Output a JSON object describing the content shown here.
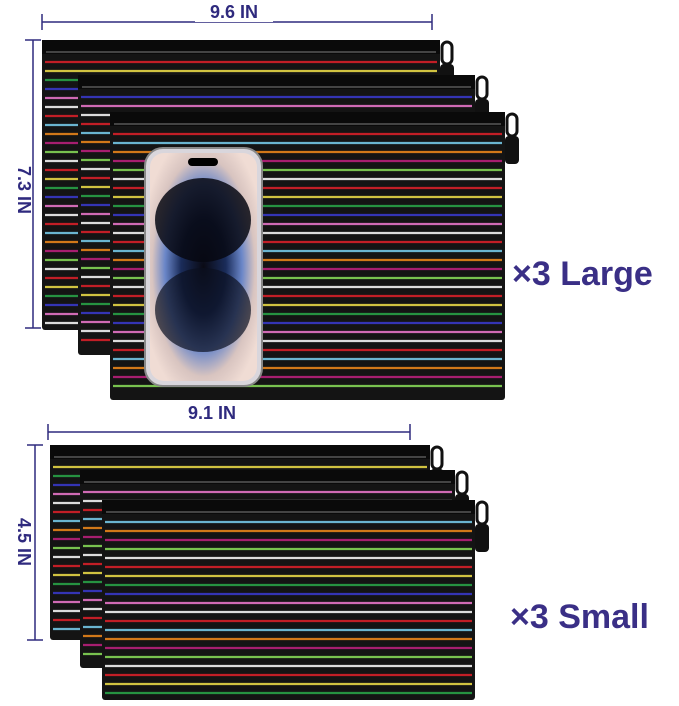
{
  "large": {
    "width": "9.6 IN",
    "height": "7.3 IN",
    "quantity": "×3 Large"
  },
  "small": {
    "width": "9.1 IN",
    "height": "4.5 IN",
    "quantity": "×3 Small"
  }
}
